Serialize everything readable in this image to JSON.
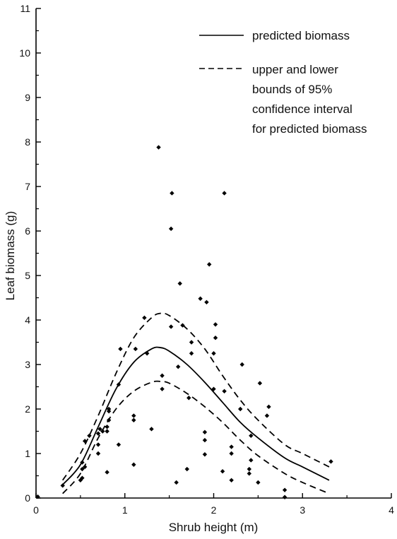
{
  "chart_data": {
    "type": "scatter",
    "xlabel": "Shrub height (m)",
    "ylabel": "Leaf biomass (g)",
    "xlim": [
      0,
      4
    ],
    "ylim": [
      0,
      11
    ],
    "xticks": [
      "0",
      "1",
      "2",
      "3",
      "4"
    ],
    "yticks": [
      "0",
      "1",
      "2",
      "3",
      "4",
      "5",
      "6",
      "7",
      "8",
      "9",
      "10",
      "11"
    ],
    "legend": {
      "position": "top-right",
      "entries": [
        {
          "label": "predicted biomass",
          "style": "solid"
        },
        {
          "label_lines": [
            "upper and lower",
            "bounds of 95%",
            "confidence interval",
            "for predicted biomass"
          ],
          "style": "dashed"
        }
      ]
    },
    "points": [
      [
        0.02,
        0.03
      ],
      [
        0.3,
        0.28
      ],
      [
        0.5,
        0.4
      ],
      [
        0.52,
        0.45
      ],
      [
        0.52,
        0.65
      ],
      [
        0.55,
        0.7
      ],
      [
        0.52,
        0.8
      ],
      [
        0.55,
        1.28
      ],
      [
        0.6,
        1.4
      ],
      [
        0.7,
        1.0
      ],
      [
        0.7,
        1.2
      ],
      [
        0.7,
        1.45
      ],
      [
        0.72,
        1.55
      ],
      [
        0.75,
        1.5
      ],
      [
        0.8,
        0.58
      ],
      [
        0.8,
        1.5
      ],
      [
        0.8,
        1.6
      ],
      [
        0.82,
        1.75
      ],
      [
        0.82,
        1.95
      ],
      [
        0.82,
        2.0
      ],
      [
        0.93,
        1.2
      ],
      [
        0.93,
        2.55
      ],
      [
        0.95,
        3.35
      ],
      [
        1.1,
        0.75
      ],
      [
        1.1,
        1.75
      ],
      [
        1.1,
        1.85
      ],
      [
        1.12,
        3.35
      ],
      [
        1.22,
        4.05
      ],
      [
        1.25,
        3.25
      ],
      [
        1.3,
        1.55
      ],
      [
        1.38,
        7.88
      ],
      [
        1.42,
        2.45
      ],
      [
        1.42,
        2.75
      ],
      [
        1.52,
        6.05
      ],
      [
        1.53,
        6.85
      ],
      [
        1.52,
        3.85
      ],
      [
        1.58,
        0.35
      ],
      [
        1.6,
        2.95
      ],
      [
        1.62,
        4.82
      ],
      [
        1.65,
        3.88
      ],
      [
        1.7,
        0.65
      ],
      [
        1.72,
        2.25
      ],
      [
        1.75,
        3.25
      ],
      [
        1.75,
        3.5
      ],
      [
        1.85,
        4.48
      ],
      [
        1.9,
        0.98
      ],
      [
        1.9,
        1.3
      ],
      [
        1.9,
        1.48
      ],
      [
        1.92,
        4.4
      ],
      [
        1.95,
        5.25
      ],
      [
        2.0,
        2.45
      ],
      [
        2.0,
        3.25
      ],
      [
        2.02,
        3.6
      ],
      [
        2.02,
        3.9
      ],
      [
        2.1,
        0.6
      ],
      [
        2.12,
        6.85
      ],
      [
        2.12,
        2.4
      ],
      [
        2.2,
        0.4
      ],
      [
        2.2,
        1.0
      ],
      [
        2.2,
        1.15
      ],
      [
        2.32,
        3.0
      ],
      [
        2.3,
        2.0
      ],
      [
        2.4,
        0.55
      ],
      [
        2.4,
        0.65
      ],
      [
        2.42,
        0.85
      ],
      [
        2.42,
        1.4
      ],
      [
        2.5,
        0.35
      ],
      [
        2.52,
        2.58
      ],
      [
        2.6,
        1.85
      ],
      [
        2.62,
        2.05
      ],
      [
        2.8,
        0.18
      ],
      [
        2.8,
        0.02
      ],
      [
        3.32,
        0.82
      ]
    ],
    "series": [
      {
        "style": "solid",
        "x": [
          0.3,
          0.5,
          0.7,
          0.9,
          1.1,
          1.3,
          1.4,
          1.5,
          1.7,
          1.9,
          2.1,
          2.3,
          2.5,
          2.8,
          3.0,
          3.3
        ],
        "y": [
          0.3,
          0.75,
          1.6,
          2.45,
          3.05,
          3.35,
          3.38,
          3.3,
          3.0,
          2.6,
          2.15,
          1.7,
          1.35,
          0.9,
          0.7,
          0.4
        ]
      },
      {
        "style": "dashed",
        "x": [
          0.3,
          0.5,
          0.7,
          0.9,
          1.1,
          1.3,
          1.4,
          1.5,
          1.7,
          1.9,
          2.1,
          2.3,
          2.5,
          2.8,
          3.0,
          3.3
        ],
        "y": [
          0.4,
          1.0,
          1.85,
          2.8,
          3.6,
          4.05,
          4.15,
          4.1,
          3.8,
          3.35,
          2.75,
          2.2,
          1.75,
          1.2,
          1.0,
          0.7
        ]
      },
      {
        "style": "dashed",
        "x": [
          0.3,
          0.5,
          0.7,
          0.9,
          1.1,
          1.3,
          1.4,
          1.5,
          1.7,
          1.9,
          2.1,
          2.3,
          2.5,
          2.8,
          3.0,
          3.3
        ],
        "y": [
          0.1,
          0.55,
          1.35,
          2.0,
          2.4,
          2.6,
          2.62,
          2.58,
          2.35,
          2.05,
          1.7,
          1.3,
          0.95,
          0.55,
          0.35,
          0.1
        ]
      }
    ]
  }
}
